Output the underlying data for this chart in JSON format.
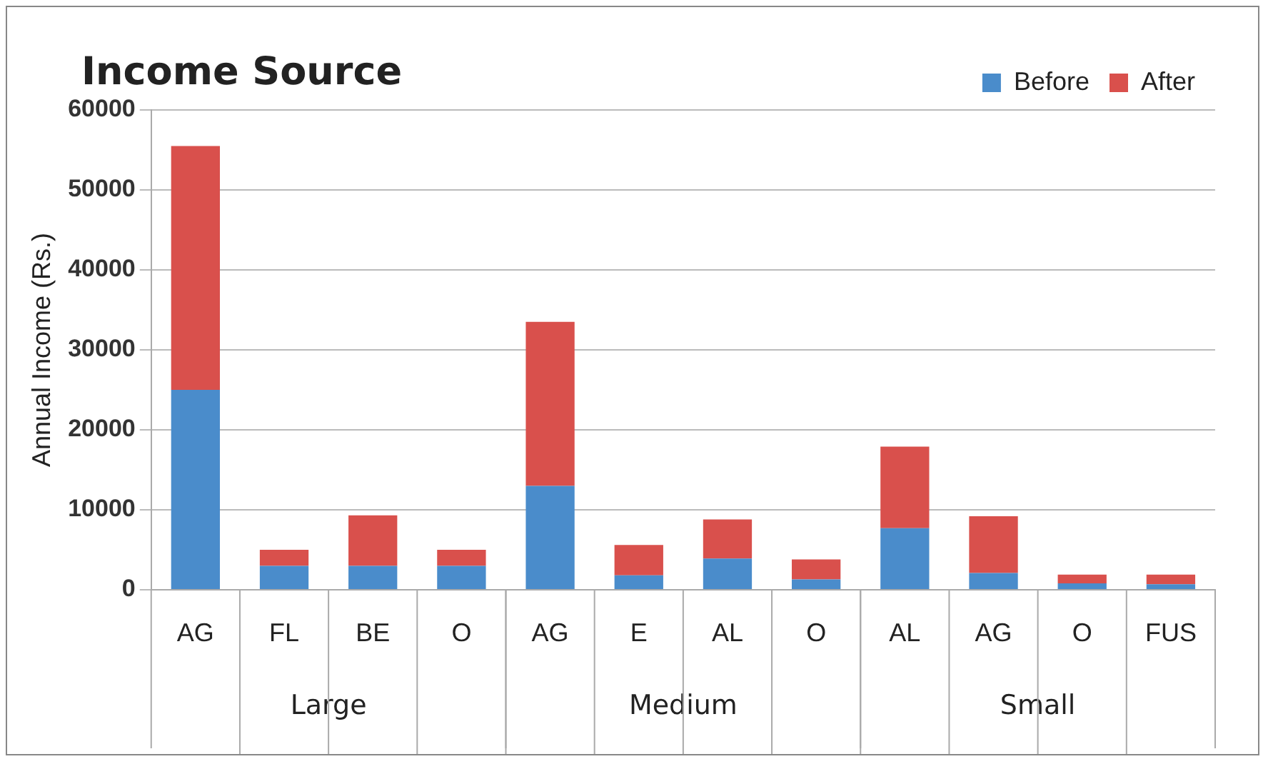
{
  "chart_data": {
    "type": "bar",
    "title": "Income Source",
    "ylabel": "Annual Income (Rs.)",
    "categories": [
      "AG",
      "FL",
      "BE",
      "O",
      "AG",
      "E",
      "AL",
      "O",
      "AL",
      "AG",
      "O",
      "FUS"
    ],
    "series": [
      {
        "name": "Before",
        "color": "#4a8ccb",
        "values": [
          25000,
          3000,
          3000,
          3000,
          13000,
          1800,
          3900,
          1300,
          7700,
          2100,
          800,
          700
        ]
      },
      {
        "name": "After",
        "color": "#d9504c",
        "values": [
          30500,
          2000,
          6300,
          2000,
          20500,
          3800,
          4900,
          2500,
          10200,
          7100,
          1100,
          1200
        ]
      }
    ],
    "stacked": true,
    "ylim": [
      0,
      60000
    ],
    "yticks": [
      0,
      10000,
      20000,
      30000,
      40000,
      50000,
      60000
    ],
    "grid": "y",
    "legend": "top right",
    "annotations": [
      "Large",
      "Medium",
      "Small"
    ]
  }
}
